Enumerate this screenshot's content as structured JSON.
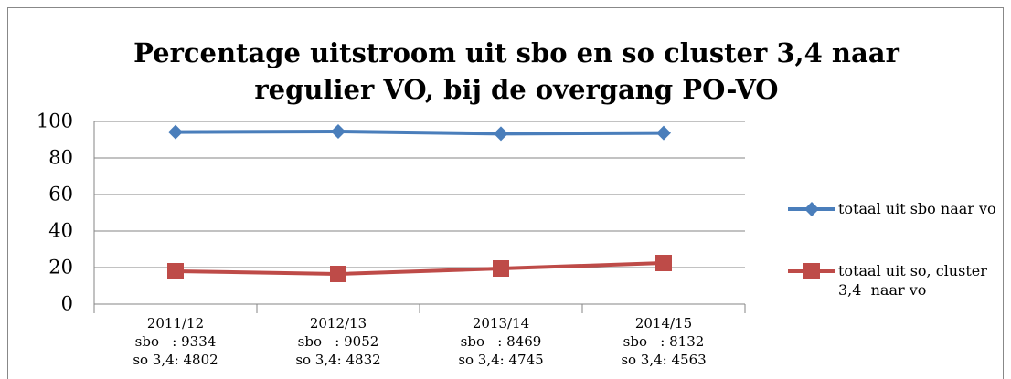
{
  "chart_data": {
    "type": "line",
    "title": "Percentage uitstroom uit sbo en so cluster 3,4 naar regulier VO, bij de overgang PO-VO",
    "categories": [
      [
        "2011/12",
        "sbo   : 9334",
        "so 3,4: 4802"
      ],
      [
        "2012/13",
        "sbo   : 9052",
        "so 3,4: 4832"
      ],
      [
        "2013/14",
        "sbo   : 8469",
        "so 3,4: 4745"
      ],
      [
        "2014/15",
        "sbo   : 8132",
        "so 3,4: 4563"
      ]
    ],
    "series": [
      {
        "name": "totaal uit sbo naar vo",
        "color": "#4a7ebb",
        "marker": "diamond",
        "values": [
          94.2,
          94.5,
          93.3,
          93.7
        ]
      },
      {
        "name": "totaal uit so, cluster 3,4  naar vo",
        "color": "#be4b48",
        "marker": "square",
        "values": [
          18,
          16.5,
          19.5,
          22.5
        ]
      }
    ],
    "ylim": [
      0,
      100
    ],
    "yticks": [
      0,
      20,
      40,
      60,
      80,
      100
    ],
    "grid": true,
    "legend": "right"
  }
}
